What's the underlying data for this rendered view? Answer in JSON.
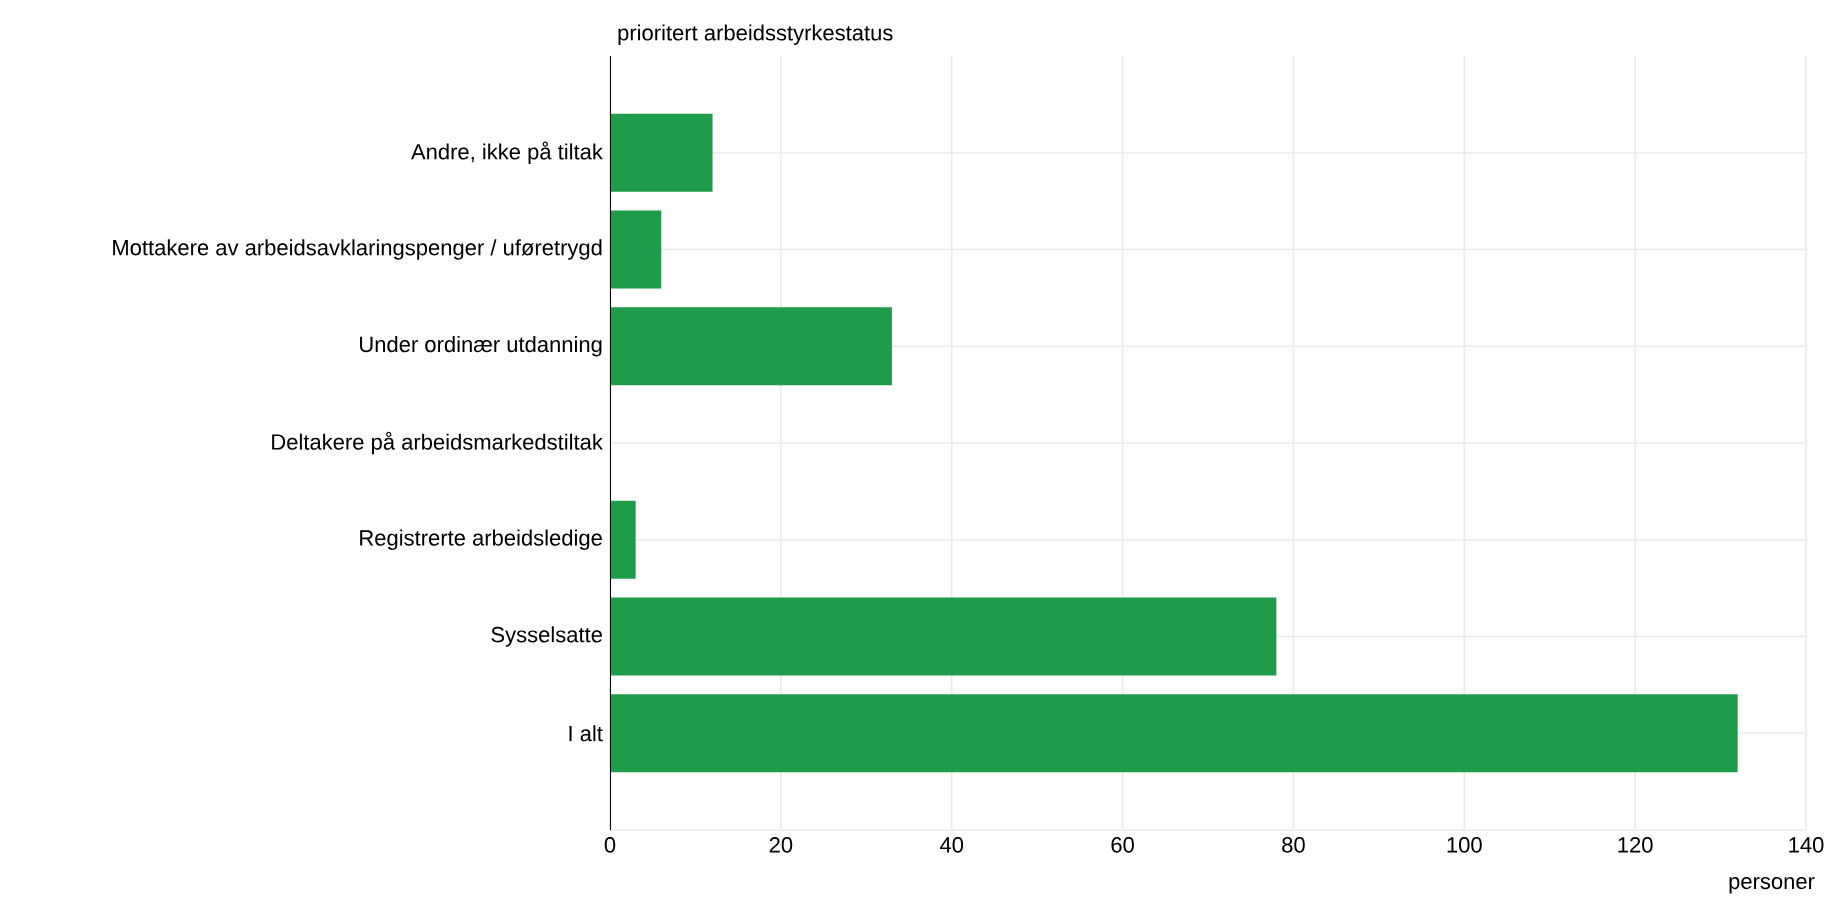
{
  "chart_data": {
    "type": "bar",
    "orientation": "horizontal",
    "ylabel": "prioritert arbeidsstyrkestatus",
    "xlabel": "personer",
    "categories": [
      "Andre, ikke på tiltak",
      "Mottakere av arbeidsavklaringspenger / uføretrygd",
      "Under ordinær utdanning",
      "Deltakere på arbeidsmarkedstiltak",
      "Registrerte arbeidsledige",
      "Sysselsatte",
      "I alt"
    ],
    "values": [
      12,
      6,
      33,
      0,
      3,
      78,
      132
    ],
    "color": "#1e9c4b",
    "xlim": [
      0,
      140
    ],
    "xticks": [
      0,
      20,
      40,
      60,
      80,
      100,
      120,
      140
    ],
    "grid": true
  }
}
